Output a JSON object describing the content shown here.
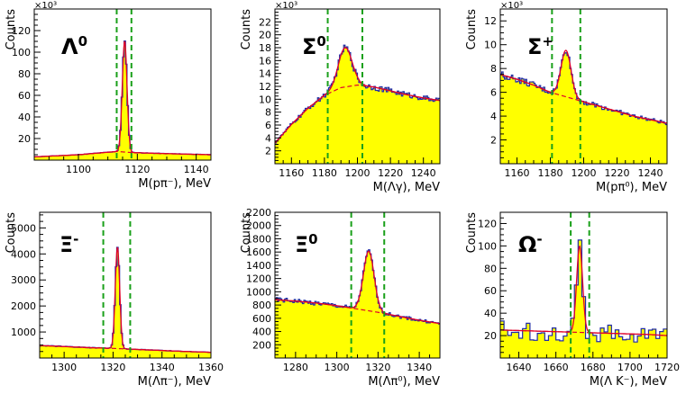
{
  "figure": {
    "layout": "2x3 grid of invariant mass histograms"
  },
  "chart_data": [
    {
      "type": "area",
      "particle": "Λ",
      "superscript": "0",
      "xlabel": "M(pπ⁻), MeV",
      "ylabel": "Counts",
      "y_multiplier": "×10³",
      "xlim": [
        1085,
        1145
      ],
      "ylim": [
        0,
        140
      ],
      "xticks": [
        1100,
        1120,
        1140
      ],
      "yticks": [
        20,
        40,
        60,
        80,
        100,
        120
      ],
      "cuts": [
        1113,
        1118
      ],
      "peak": {
        "mean": 1115.7,
        "sigma": 0.8,
        "height": 103
      },
      "background": [
        [
          1085,
          3
        ],
        [
          1100,
          5
        ],
        [
          1113,
          8
        ],
        [
          1118,
          7
        ],
        [
          1130,
          6
        ],
        [
          1145,
          5
        ]
      ],
      "histogram_color": "#ffff00",
      "data_color": "#1f2aa8",
      "fit_color": "#e0002a",
      "cut_color": "#1aa01a"
    },
    {
      "type": "area",
      "particle": "Σ",
      "superscript": "0",
      "xlabel": "M(Λγ), MeV",
      "ylabel": "Counts",
      "y_multiplier": "×10³",
      "xlim": [
        1150,
        1250
      ],
      "ylim": [
        0,
        24
      ],
      "xticks": [
        1160,
        1180,
        1200,
        1220,
        1240
      ],
      "yticks": [
        2,
        4,
        6,
        8,
        10,
        12,
        14,
        16,
        18,
        20,
        22
      ],
      "cuts": [
        1182,
        1203
      ],
      "peak": {
        "mean": 1192.6,
        "sigma": 4.2,
        "height": 6.1
      },
      "background": [
        [
          1150,
          3.2
        ],
        [
          1160,
          6.1
        ],
        [
          1170,
          8.6
        ],
        [
          1180,
          10.6
        ],
        [
          1190,
          11.8
        ],
        [
          1200,
          12.2
        ],
        [
          1210,
          11.9
        ],
        [
          1220,
          11.3
        ],
        [
          1230,
          10.7
        ],
        [
          1240,
          10.2
        ],
        [
          1250,
          9.8
        ]
      ],
      "histogram_color": "#ffff00",
      "data_color": "#1f2aa8",
      "fit_color": "#e0002a",
      "cut_color": "#1aa01a"
    },
    {
      "type": "area",
      "particle": "Σ",
      "superscript": "+",
      "xlabel": "M(pπ⁰), MeV",
      "ylabel": "Counts",
      "y_multiplier": "×10³",
      "xlim": [
        1150,
        1250
      ],
      "ylim": [
        0,
        13
      ],
      "xticks": [
        1160,
        1180,
        1200,
        1220,
        1240
      ],
      "yticks": [
        2,
        4,
        6,
        8,
        10,
        12
      ],
      "cuts": [
        1181,
        1198
      ],
      "peak": {
        "mean": 1189.4,
        "sigma": 3.0,
        "height": 3.9
      },
      "background": [
        [
          1150,
          7.5
        ],
        [
          1160,
          7.1
        ],
        [
          1170,
          6.6
        ],
        [
          1180,
          6.0
        ],
        [
          1190,
          5.6
        ],
        [
          1200,
          5.2
        ],
        [
          1210,
          4.8
        ],
        [
          1220,
          4.4
        ],
        [
          1230,
          4.0
        ],
        [
          1240,
          3.7
        ],
        [
          1250,
          3.4
        ]
      ],
      "histogram_color": "#ffff00",
      "data_color": "#1f2aa8",
      "fit_color": "#e0002a",
      "cut_color": "#1aa01a"
    },
    {
      "type": "area",
      "particle": "Ξ",
      "superscript": "-",
      "xlabel": "M(Λπ⁻), MeV",
      "ylabel": "Counts",
      "y_multiplier": "",
      "xlim": [
        1290,
        1360
      ],
      "ylim": [
        0,
        5600
      ],
      "xticks": [
        1300,
        1320,
        1340,
        1360
      ],
      "yticks": [
        1000,
        2000,
        3000,
        4000,
        5000
      ],
      "cuts": [
        1316,
        1327
      ],
      "peak": {
        "mean": 1321.8,
        "sigma": 0.9,
        "height": 3900
      },
      "background": [
        [
          1290,
          480
        ],
        [
          1300,
          440
        ],
        [
          1310,
          400
        ],
        [
          1320,
          370
        ],
        [
          1330,
          330
        ],
        [
          1340,
          290
        ],
        [
          1350,
          250
        ],
        [
          1360,
          220
        ]
      ],
      "histogram_color": "#ffff00",
      "data_color": "#1f2aa8",
      "fit_color": "#e0002a",
      "cut_color": "#1aa01a"
    },
    {
      "type": "area",
      "particle": "Ξ",
      "superscript": "0",
      "xlabel": "M(Λπ⁰), MeV",
      "ylabel": "Counts",
      "y_multiplier": "",
      "xlim": [
        1270,
        1350
      ],
      "ylim": [
        0,
        2200
      ],
      "xticks": [
        1280,
        1300,
        1320,
        1340
      ],
      "yticks": [
        200,
        400,
        600,
        800,
        1000,
        1200,
        1400,
        1600,
        1800,
        2000,
        2200
      ],
      "cuts": [
        1307,
        1323
      ],
      "peak": {
        "mean": 1315.5,
        "sigma": 2.6,
        "height": 900
      },
      "background": [
        [
          1270,
          880
        ],
        [
          1280,
          860
        ],
        [
          1290,
          830
        ],
        [
          1300,
          790
        ],
        [
          1310,
          740
        ],
        [
          1320,
          690
        ],
        [
          1330,
          630
        ],
        [
          1340,
          570
        ],
        [
          1350,
          520
        ]
      ],
      "histogram_color": "#ffff00",
      "data_color": "#1f2aa8",
      "fit_color": "#e0002a",
      "cut_color": "#1aa01a"
    },
    {
      "type": "area",
      "particle": "Ω",
      "superscript": "-",
      "xlabel": "M(Λ K⁻), MeV",
      "ylabel": "Counts",
      "y_multiplier": "",
      "xlim": [
        1630,
        1720
      ],
      "ylim": [
        0,
        130
      ],
      "xticks": [
        1640,
        1660,
        1680,
        1700,
        1720
      ],
      "yticks": [
        20,
        40,
        60,
        80,
        100,
        120
      ],
      "cuts": [
        1668,
        1678
      ],
      "peak": {
        "mean": 1672.8,
        "sigma": 1.6,
        "height": 77
      },
      "background": [
        [
          1630,
          25
        ],
        [
          1650,
          24
        ],
        [
          1670,
          23
        ],
        [
          1690,
          22
        ],
        [
          1710,
          21
        ],
        [
          1720,
          20
        ]
      ],
      "histogram_color": "#ffff00",
      "data_color": "#1f2aa8",
      "fit_color": "#e0002a",
      "cut_color": "#1aa01a"
    }
  ]
}
